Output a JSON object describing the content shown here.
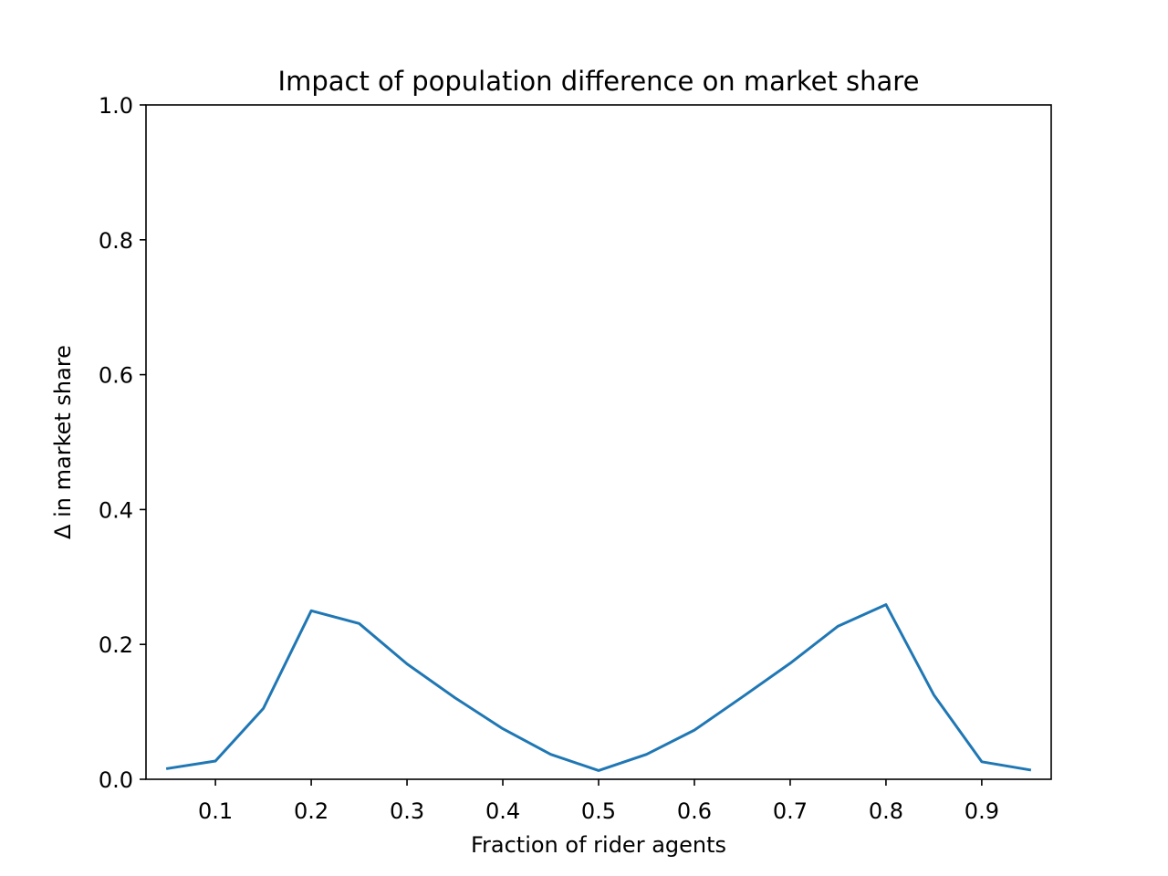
{
  "chart_data": {
    "type": "line",
    "title": "Impact of population difference on market share",
    "xlabel": "Fraction of rider agents",
    "ylabel": "Δ in market share",
    "xlim": [
      0.0275,
      0.9725
    ],
    "ylim": [
      0.0,
      1.0
    ],
    "xticks": [
      0.1,
      0.2,
      0.3,
      0.4,
      0.5,
      0.6,
      0.7,
      0.8,
      0.9
    ],
    "xtick_labels": [
      "0.1",
      "0.2",
      "0.3",
      "0.4",
      "0.5",
      "0.6",
      "0.7",
      "0.8",
      "0.9"
    ],
    "yticks": [
      0.0,
      0.2,
      0.4,
      0.6,
      0.8,
      1.0
    ],
    "ytick_labels": [
      "0.0",
      "0.2",
      "0.4",
      "0.6",
      "0.8",
      "1.0"
    ],
    "grid": false,
    "series": [
      {
        "color": "#1f77b4",
        "x": [
          0.05,
          0.1,
          0.15,
          0.2,
          0.25,
          0.3,
          0.35,
          0.4,
          0.45,
          0.5,
          0.55,
          0.6,
          0.65,
          0.7,
          0.75,
          0.8,
          0.85,
          0.9,
          0.95
        ],
        "y": [
          0.016,
          0.027,
          0.105,
          0.25,
          0.231,
          0.171,
          0.121,
          0.075,
          0.037,
          0.013,
          0.037,
          0.073,
          0.122,
          0.172,
          0.227,
          0.259,
          0.125,
          0.026,
          0.014
        ]
      }
    ]
  }
}
